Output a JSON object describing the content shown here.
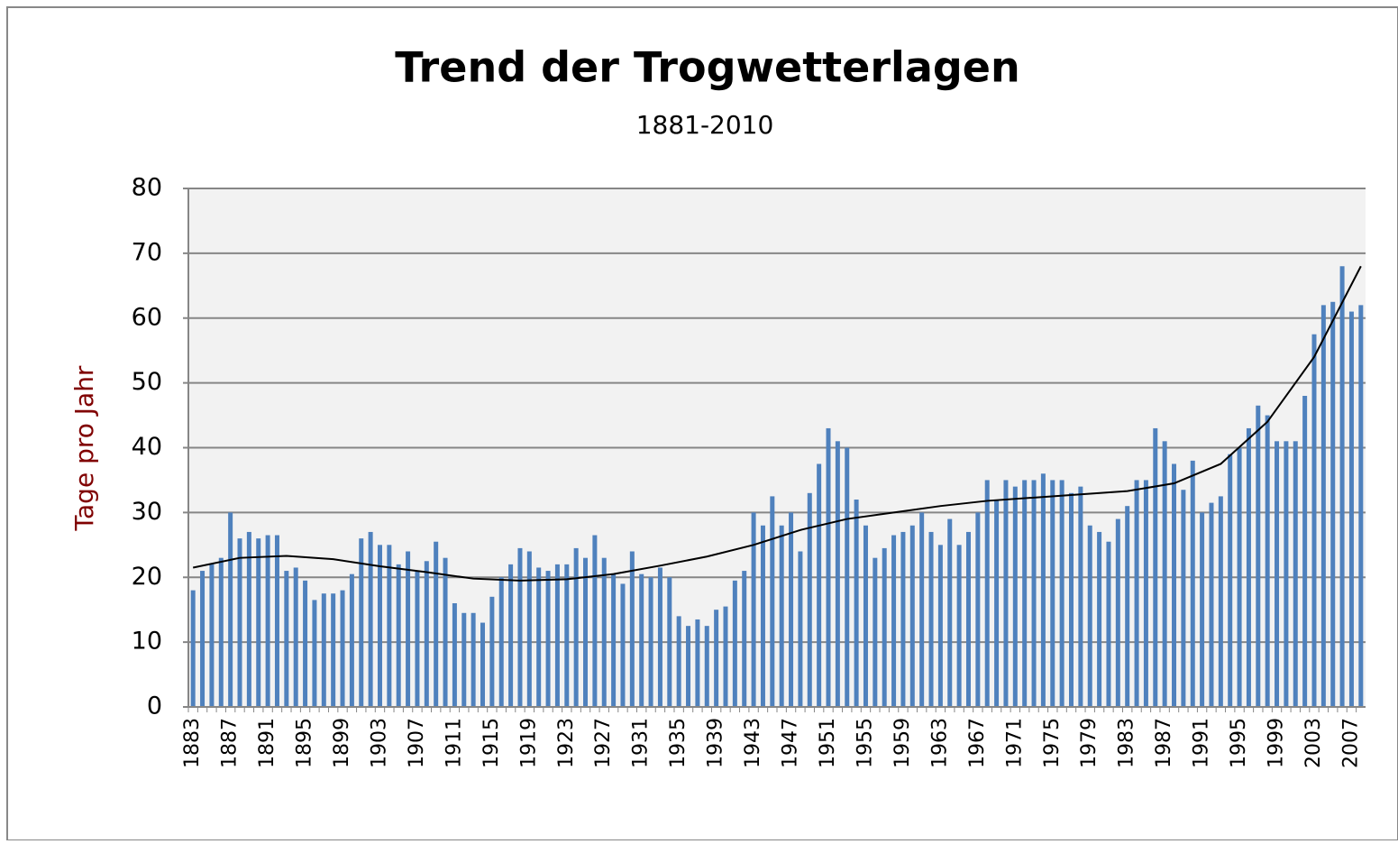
{
  "chart_data": {
    "type": "bar",
    "title": "Trend der Trogwetterlagen",
    "subtitle": "1881-2010",
    "y_label": "Tage pro Jahr",
    "categories": [
      "1883",
      null,
      null,
      null,
      "1887",
      null,
      null,
      null,
      "1891",
      null,
      null,
      null,
      "1895",
      null,
      null,
      null,
      "1899",
      null,
      null,
      null,
      "1903",
      null,
      null,
      null,
      "1907",
      null,
      null,
      null,
      "1911",
      null,
      null,
      null,
      "1915",
      null,
      null,
      null,
      "1919",
      null,
      null,
      null,
      "1923",
      null,
      null,
      null,
      "1927",
      null,
      null,
      null,
      "1931",
      null,
      null,
      null,
      "1935",
      null,
      null,
      null,
      "1939",
      null,
      null,
      null,
      "1943",
      null,
      null,
      null,
      "1947",
      null,
      null,
      null,
      "1951",
      null,
      null,
      null,
      "1955",
      null,
      null,
      null,
      "1959",
      null,
      null,
      null,
      "1963",
      null,
      null,
      null,
      "1967",
      null,
      null,
      null,
      "1971",
      null,
      null,
      null,
      "1975",
      null,
      null,
      null,
      "1979",
      null,
      null,
      null,
      "1983",
      null,
      null,
      null,
      "1987",
      null,
      null,
      null,
      "1991",
      null,
      null,
      null,
      "1995",
      null,
      null,
      null,
      "1999",
      null,
      null,
      null,
      "2003",
      null,
      null,
      null,
      "2007",
      null
    ],
    "values": [
      18,
      21,
      22,
      23,
      30,
      26,
      27,
      26,
      26.5,
      26.5,
      21,
      21.5,
      19.5,
      16.5,
      17.5,
      17.5,
      18,
      20.5,
      26,
      27,
      25,
      25,
      22,
      24,
      21,
      22.5,
      25.5,
      23,
      16,
      14.5,
      14.5,
      13,
      17,
      20,
      22,
      24.5,
      24,
      21.5,
      21,
      22,
      22,
      24.5,
      23,
      26.5,
      23,
      20.5,
      19,
      24,
      20.5,
      20,
      21.5,
      20,
      14,
      12.5,
      13.5,
      12.5,
      15,
      15.5,
      19.5,
      21,
      30,
      28,
      32.5,
      28,
      30,
      24,
      33,
      37.5,
      43,
      41,
      40,
      32,
      28,
      23,
      24.5,
      26.5,
      27,
      28,
      30,
      27,
      25,
      29,
      25,
      27,
      30,
      35,
      32,
      35,
      34,
      35,
      35,
      36,
      35,
      35,
      33,
      34,
      28,
      27,
      25.5,
      29,
      31,
      35,
      35,
      43,
      41,
      37.5,
      33.5,
      38,
      30,
      31.5,
      32.5,
      39,
      40,
      43,
      46.5,
      45,
      41,
      41,
      41,
      48,
      57.5,
      62,
      62.5,
      68,
      61,
      62
    ],
    "color": "#4f81bd",
    "trend": {
      "x": [
        1883,
        1888,
        1893,
        1898,
        1903,
        1908,
        1913,
        1918,
        1923,
        1928,
        1933,
        1938,
        1943,
        1948,
        1953,
        1958,
        1963,
        1968,
        1973,
        1978,
        1983,
        1988,
        1993,
        1998,
        2003,
        2008
      ],
      "values": [
        21.5,
        23,
        23.3,
        22.8,
        21.7,
        20.8,
        19.8,
        19.5,
        19.7,
        20.5,
        21.8,
        23.2,
        25,
        27.3,
        29,
        30,
        31,
        31.8,
        32.3,
        32.8,
        33.3,
        34.5,
        37.5,
        44,
        54,
        68
      ],
      "color": "#000000"
    },
    "ylim": [
      0,
      80
    ],
    "yticks": [
      0,
      10,
      20,
      30,
      40,
      50,
      60,
      70,
      80
    ],
    "grid": true
  }
}
